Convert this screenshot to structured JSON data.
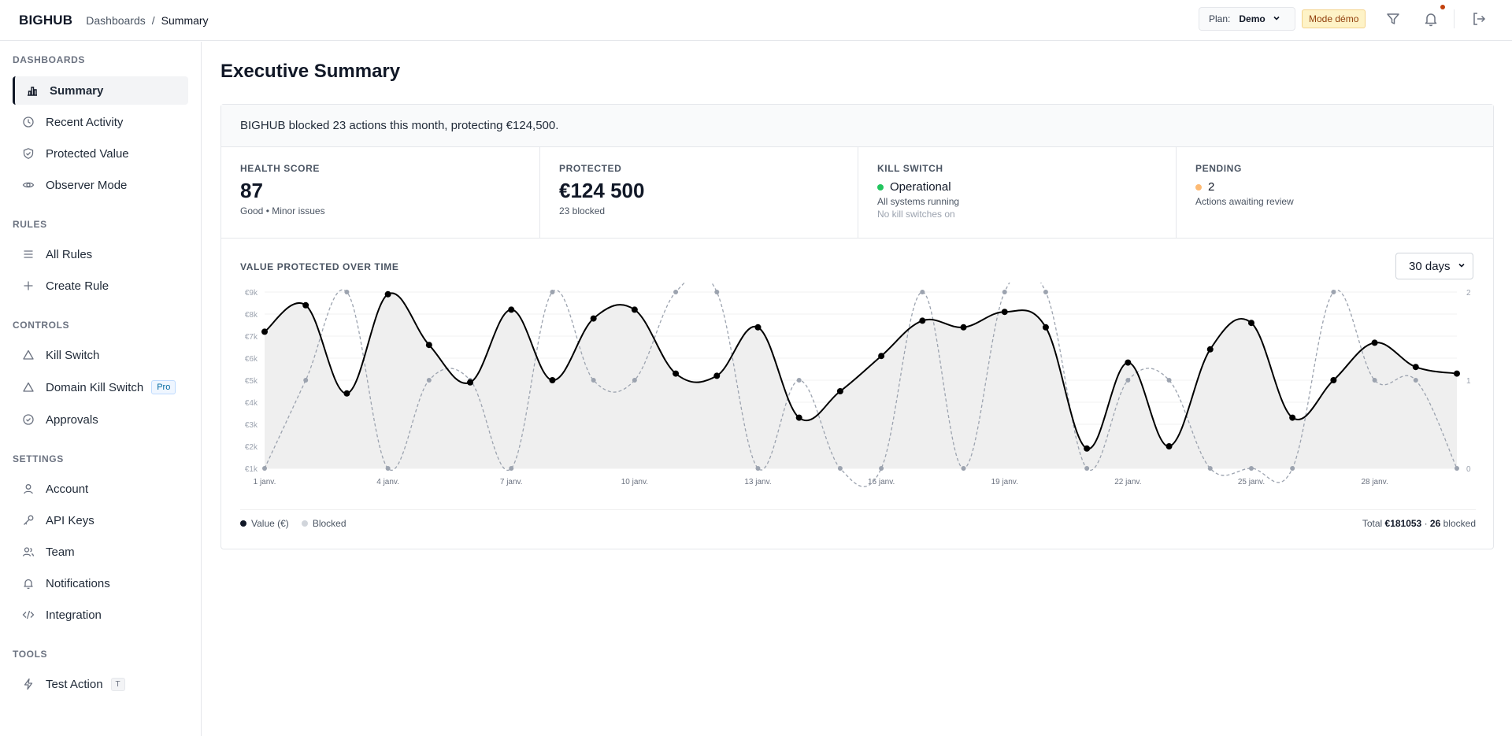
{
  "header": {
    "brand": "BIGHUB",
    "breadcrumb": [
      "Dashboards",
      "/",
      "Summary"
    ],
    "plan_label": "Plan:",
    "plan_value": "Demo",
    "demo_badge": "Mode démo"
  },
  "sidebar": {
    "sections": {
      "dashboards": "DASHBOARDS",
      "rules": "RULES",
      "controls": "CONTROLS",
      "settings": "SETTINGS",
      "tools": "TOOLS"
    },
    "items": {
      "summary": "Summary",
      "recent_activity": "Recent Activity",
      "protected_value": "Protected Value",
      "observer_mode": "Observer Mode",
      "all_rules": "All Rules",
      "create_rule": "Create Rule",
      "kill_switch": "Kill Switch",
      "domain_kill_switch": "Domain Kill Switch",
      "domain_kill_switch_badge": "Pro",
      "approvals": "Approvals",
      "account": "Account",
      "api_keys": "API Keys",
      "team": "Team",
      "notifications": "Notifications",
      "integration": "Integration",
      "test_action": "Test Action",
      "test_action_shortcut": "T"
    }
  },
  "main": {
    "title": "Executive Summary",
    "banner": "BIGHUB blocked 23 actions this month, protecting €124,500.",
    "stats": {
      "health": {
        "label": "HEALTH SCORE",
        "value": "87",
        "sub": "Good • Minor issues"
      },
      "protected": {
        "label": "PROTECTED",
        "value": "€124 500",
        "sub": "23 blocked"
      },
      "kill_switch": {
        "label": "KILL SWITCH",
        "status": "Operational",
        "sub": "All systems running",
        "sub2": "No kill switches on"
      },
      "pending": {
        "label": "PENDING",
        "value": "2",
        "sub": "Actions awaiting review"
      }
    },
    "chart_title": "VALUE PROTECTED OVER TIME",
    "range": "30 days",
    "legend": {
      "value": "Value (€)",
      "blocked": "Blocked"
    },
    "totals": {
      "prefix": "Total",
      "amount": "€181053",
      "sep": "·",
      "count": "26",
      "suffix": "blocked"
    }
  },
  "colors": {
    "value_line": "#000000",
    "blocked_line": "#9ca3af",
    "operational": "#22c55e",
    "pending": "#fdba74",
    "area_fill": "#efefef",
    "demo_badge_bg": "#fef3c7"
  },
  "chart_data": {
    "type": "line",
    "title": "VALUE PROTECTED OVER TIME",
    "x": [
      "1 janv.",
      "2 janv.",
      "3 janv.",
      "4 janv.",
      "5 janv.",
      "6 janv.",
      "7 janv.",
      "8 janv.",
      "9 janv.",
      "10 janv.",
      "11 janv.",
      "12 janv.",
      "13 janv.",
      "14 janv.",
      "15 janv.",
      "16 janv.",
      "17 janv.",
      "18 janv.",
      "19 janv.",
      "20 janv.",
      "21 janv.",
      "22 janv.",
      "23 janv.",
      "24 janv.",
      "25 janv.",
      "26 janv.",
      "27 janv.",
      "28 janv.",
      "29 janv.",
      "30 janv."
    ],
    "x_tick_labels": [
      "1 janv.",
      "4 janv.",
      "7 janv.",
      "10 janv.",
      "13 janv.",
      "16 janv.",
      "19 janv.",
      "22 janv.",
      "25 janv.",
      "28 janv."
    ],
    "y_left_ticks": [
      "€1k",
      "€2k",
      "€3k",
      "€4k",
      "€5k",
      "€6k",
      "€7k",
      "€8k",
      "€9k"
    ],
    "y_left_range": [
      1000,
      9000
    ],
    "y_right_ticks": [
      "0",
      "1",
      "2"
    ],
    "y_right_range": [
      0,
      2
    ],
    "series": [
      {
        "name": "Value (€)",
        "axis": "left",
        "style": "solid-area",
        "values": [
          7200,
          8400,
          4400,
          8900,
          6600,
          4900,
          8200,
          5000,
          7800,
          8200,
          5300,
          5200,
          7400,
          3300,
          4500,
          6100,
          7700,
          7400,
          8100,
          7400,
          1900,
          5800,
          2000,
          6400,
          7600,
          3300,
          5000,
          6700,
          5600,
          5300
        ]
      },
      {
        "name": "Blocked",
        "axis": "right",
        "style": "dashed",
        "values": [
          0,
          1,
          2,
          0,
          1,
          1,
          0,
          2,
          1,
          1,
          2,
          2,
          0,
          1,
          0,
          0,
          2,
          0,
          2,
          2,
          0,
          1,
          1,
          0,
          0,
          0,
          2,
          1,
          1,
          0
        ]
      }
    ],
    "grid": true,
    "legend_position": "bottom-left"
  }
}
